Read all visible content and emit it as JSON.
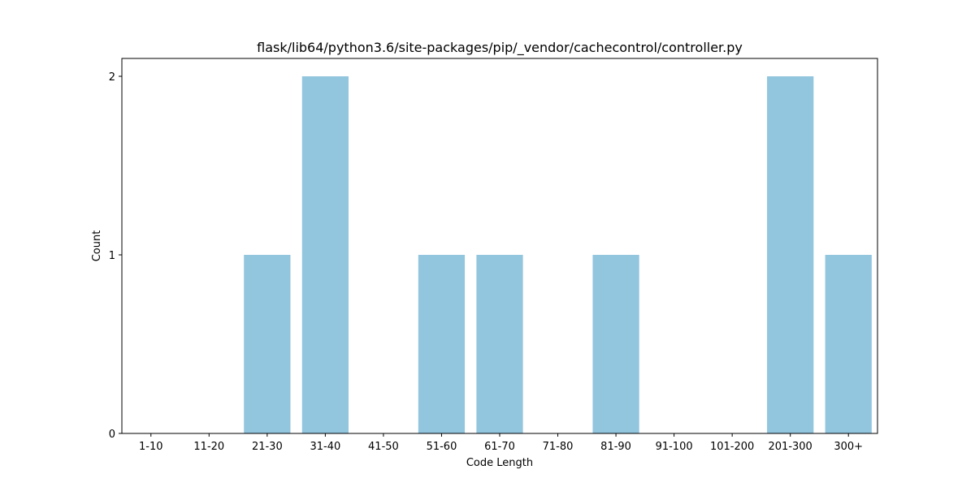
{
  "chart_data": {
    "type": "bar",
    "title": "flask/lib64/python3.6/site-packages/pip/_vendor/cachecontrol/controller.py",
    "xlabel": "Code Length",
    "ylabel": "Count",
    "categories": [
      "1-10",
      "11-20",
      "21-30",
      "31-40",
      "41-50",
      "51-60",
      "61-70",
      "71-80",
      "81-90",
      "91-100",
      "101-200",
      "201-300",
      "300+"
    ],
    "values": [
      0,
      0,
      1,
      2,
      0,
      1,
      1,
      0,
      1,
      0,
      0,
      2,
      1
    ],
    "yticks": [
      0,
      1,
      2
    ],
    "ylim": [
      0,
      2.1
    ],
    "grid": false,
    "bar_color": "#92c5de"
  }
}
